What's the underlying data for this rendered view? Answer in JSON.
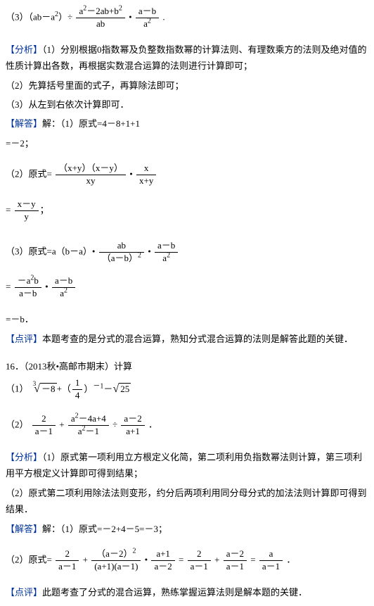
{
  "colors": {
    "label": "#003399",
    "text": "#000000",
    "bg": "#ffffff"
  },
  "fonts": {
    "base_size": 13,
    "line_height": 1.8
  },
  "p3": {
    "prefix": "（3）（ab－a",
    "sq": "2",
    "mid1": "）÷",
    "f1_num": "a<sup>2</sup>－2ab+b<sup>2</sup>",
    "f1_den": "ab",
    "dot": "•",
    "f2_num": "a－b",
    "f2_den": "a<sup>2</sup>",
    "end": "."
  },
  "analysis_label": "【分析】",
  "analysis1": "（1）分别根据0指数幂及负整数指数幂的计算法则、有理数乘方的法则及绝对值的性质计算出各数，再根据实数混合运算的法则进行计算即可；",
  "analysis2": "（2）先算括号里面的式子，再算除法即可；",
  "analysis3": "（3）从左到右依次计算即可．",
  "answer_label": "【解答】",
  "ans1_line": "解：（1）原式=4－8+1+1",
  "ans1_res": "=－2；",
  "ans2_prefix": "（2）原式=",
  "ans2_f1_num": "（x+y）（x－y）",
  "ans2_f1_den": "xy",
  "ans2_dot": "•",
  "ans2_f2_num": "x",
  "ans2_f2_den": "x+y",
  "ans2_res_eq": "=",
  "ans2_res_num": "x－y",
  "ans2_res_den": "y",
  "ans2_semi": "；",
  "ans3_prefix": "（3）原式=a（b－a）•",
  "ans3_f1_num": "ab",
  "ans3_f1_den": "（a－b）<sup>2</sup>",
  "ans3_dot": "•",
  "ans3_f2_num": "a－b",
  "ans3_f2_den": "a<sup>2</sup>",
  "ans3_l2_eq": "=",
  "ans3_l2_f1_num": "－a<sup>2</sup>b",
  "ans3_l2_f1_den": "a－b",
  "ans3_l2_dot": "•",
  "ans3_l2_f2_num": "a－b",
  "ans3_l2_f2_den": "a<sup>2</sup>",
  "ans3_res": "=－b．",
  "comment_label": "【点评】",
  "comment1": "本题考查的是分式的混合运算，熟知分式混合运算的法则是解答此题的关键．",
  "q16": "16．（2013秋•高邮市期末）计算",
  "q16_1_prefix": "（1）",
  "q16_1_cube_idx": "3",
  "q16_1_cube_body": "－8",
  "q16_1_plus": "+（",
  "q16_1_frac_num": "1",
  "q16_1_frac_den": "4",
  "q16_1_pow": "）<sup>－1</sup>－",
  "q16_1_sqrt_body": "25",
  "q16_2_prefix": "（2）",
  "q16_2_f1_num": "2",
  "q16_2_f1_den": "a－1",
  "q16_2_plus": "+",
  "q16_2_f2_num": "a<sup>2</sup>－4a+4",
  "q16_2_f2_den": "a<sup>2</sup>－1",
  "q16_2_div": "÷",
  "q16_2_f3_num": "a－2",
  "q16_2_f3_den": "a+1",
  "q16_2_end": "．",
  "analysis_b1": "（1）原式第一项利用立方根定义化简，第二项利用负指数幂法则计算，第三项利用平方根定义计算即可得到结果；",
  "analysis_b2": "（2）原式第二项利用除法法则变形，约分后两项利用同分母分式的加法法则计算即可得到结果．",
  "ansb1": "解：（1）原式=－2+4－5=－3；",
  "ansb2_prefix": "（2）原式=",
  "ansb2_f1_num": "2",
  "ansb2_f1_den": "a－1",
  "ansb2_plus1": "+",
  "ansb2_f2_num": "（a－2）<sup>2</sup>",
  "ansb2_f2_den": "(a+1)(a－1)",
  "ansb2_dot1": "•",
  "ansb2_f3_num": "a+1",
  "ansb2_f3_den": "a－2",
  "ansb2_eq1": "=",
  "ansb2_f4_num": "2",
  "ansb2_f4_den": "a－1",
  "ansb2_plus2": "+",
  "ansb2_f5_num": "a－2",
  "ansb2_f5_den": "a－1",
  "ansb2_eq2": "=",
  "ansb2_f6_num": "a",
  "ansb2_f6_den": "a－1",
  "ansb2_end": "．",
  "comment2": "此题考查了分式的混合运算，熟练掌握运算法则是解本题的关键．"
}
